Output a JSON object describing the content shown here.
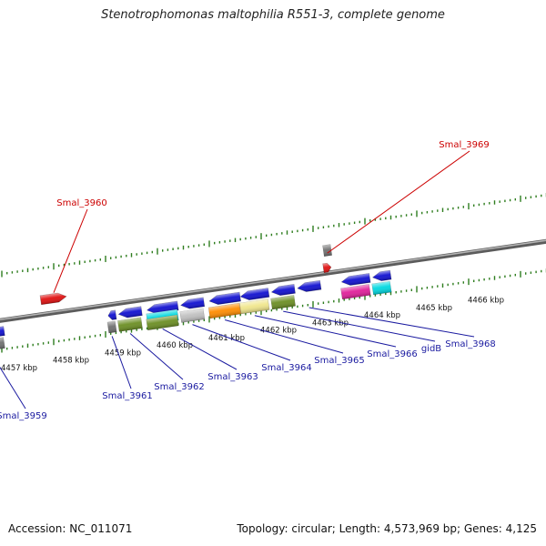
{
  "title": "Stenotrophomonas maltophilia R551-3, complete genome",
  "footer": {
    "accession": "Accession: NC_011071",
    "summary": "Topology: circular; Length: 4,573,969 bp; Genes: 4,125"
  },
  "colors": {
    "backbone": "#8a8a8a",
    "tick": "#2e7d1e",
    "forward_label": "#cc0000",
    "reverse_label": "#1a1aa0"
  },
  "ticks": [
    {
      "kbp": 4457,
      "label": "4457 kbp"
    },
    {
      "kbp": 4458,
      "label": "4458 kbp"
    },
    {
      "kbp": 4459,
      "label": "4459 kbp"
    },
    {
      "kbp": 4460,
      "label": "4460 kbp"
    },
    {
      "kbp": 4461,
      "label": "4461 kbp"
    },
    {
      "kbp": 4462,
      "label": "4462 kbp"
    },
    {
      "kbp": 4463,
      "label": "4463 kbp"
    },
    {
      "kbp": 4464,
      "label": "4464 kbp"
    },
    {
      "kbp": 4465,
      "label": "4465 kbp"
    },
    {
      "kbp": 4466,
      "label": "4466 kbp"
    }
  ],
  "genes": [
    {
      "label": "Smal_3959",
      "strand": "-",
      "start_kbp": 4456.55,
      "end_kbp": 4457.05,
      "color": "#1010d0",
      "feature_color": "#707070",
      "label_color": "#1a1aa0"
    },
    {
      "label": "Smal_3960",
      "strand": "+",
      "start_kbp": 4457.75,
      "end_kbp": 4458.25,
      "color": "#e01010",
      "label_color": "#cc0000"
    },
    {
      "label": "Smal_3961",
      "strand": "-",
      "start_kbp": 4459.05,
      "end_kbp": 4459.2,
      "color": "#1010d0",
      "feature_color": "#707070",
      "label_color": "#1a1aa0"
    },
    {
      "label": "Smal_3962",
      "strand": "-",
      "start_kbp": 4459.25,
      "end_kbp": 4459.7,
      "color": "#1010d0",
      "feature_color": "#6b8e23",
      "label_color": "#1a1aa0"
    },
    {
      "label": "Smal_3963",
      "strand": "-",
      "start_kbp": 4459.8,
      "end_kbp": 4460.4,
      "color": "#1010d0",
      "feature_color": "#00d8e0",
      "feature2_color": "#6b8e23",
      "label_color": "#1a1aa0"
    },
    {
      "label": "Smal_3964",
      "strand": "-",
      "start_kbp": 4460.45,
      "end_kbp": 4460.9,
      "color": "#1010d0",
      "feature_color": "#c0c0c0",
      "label_color": "#1a1aa0"
    },
    {
      "label": "Smal_3965",
      "strand": "-",
      "start_kbp": 4461.0,
      "end_kbp": 4461.6,
      "color": "#1010d0",
      "feature_color": "#ff8c00",
      "label_color": "#1a1aa0"
    },
    {
      "label": "Smal_3966",
      "strand": "-",
      "start_kbp": 4461.6,
      "end_kbp": 4462.15,
      "color": "#1010d0",
      "feature_color": "#f0e68c",
      "label_color": "#1a1aa0"
    },
    {
      "label": "gidB",
      "strand": "-",
      "start_kbp": 4462.2,
      "end_kbp": 4462.65,
      "color": "#1010d0",
      "feature_color": "#6b8e23",
      "label_color": "#1a1aa0"
    },
    {
      "label": "Smal_3968",
      "strand": "-",
      "start_kbp": 4462.7,
      "end_kbp": 4463.15,
      "color": "#1010d0",
      "label_color": "#1a1aa0"
    },
    {
      "label": "Smal_3969",
      "strand": "+",
      "start_kbp": 4463.2,
      "end_kbp": 4463.35,
      "color": "#e01010",
      "feature_color": "#707070",
      "label_color": "#cc0000"
    },
    {
      "label": "",
      "strand": "-",
      "start_kbp": 4463.55,
      "end_kbp": 4464.1,
      "color": "#1010d0",
      "feature_color": "#e0209a"
    },
    {
      "label": "",
      "strand": "-",
      "start_kbp": 4464.15,
      "end_kbp": 4464.5,
      "color": "#1010d0",
      "feature_color": "#00d8e0"
    }
  ]
}
